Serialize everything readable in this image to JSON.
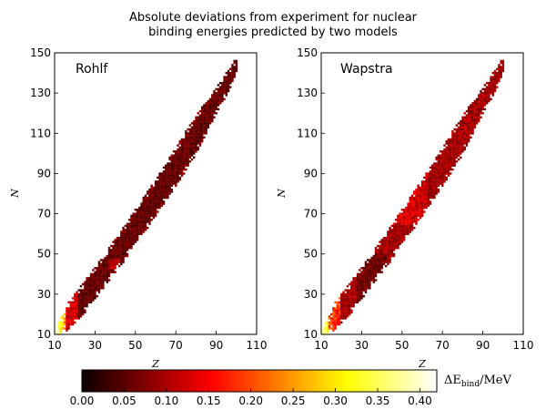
{
  "chart_data": {
    "type": "heatmap",
    "title": "Absolute deviations from experiment for nuclear\nbinding energies predicted by two models",
    "panels": [
      {
        "label": "Rohlf",
        "model": "rohlf"
      },
      {
        "label": "Wapstra",
        "model": "wapstra"
      }
    ],
    "xlabel": "Z",
    "ylabel": "N",
    "xlim": [
      10,
      110
    ],
    "ylim": [
      10,
      150
    ],
    "xticks": [
      "10",
      "30",
      "50",
      "70",
      "90",
      "110"
    ],
    "yticks": [
      "10",
      "30",
      "50",
      "70",
      "90",
      "110",
      "130",
      "150"
    ],
    "colorbar": {
      "label": "ΔE_bind /MeV",
      "label_main": "ΔE",
      "label_sub": "bind",
      "label_unit": "/MeV",
      "range": [
        0.0,
        0.42
      ],
      "ticks": [
        "0.00",
        "0.05",
        "0.10",
        "0.15",
        "0.20",
        "0.25",
        "0.30",
        "0.35",
        "0.40"
      ],
      "colormap": "hot"
    }
  }
}
